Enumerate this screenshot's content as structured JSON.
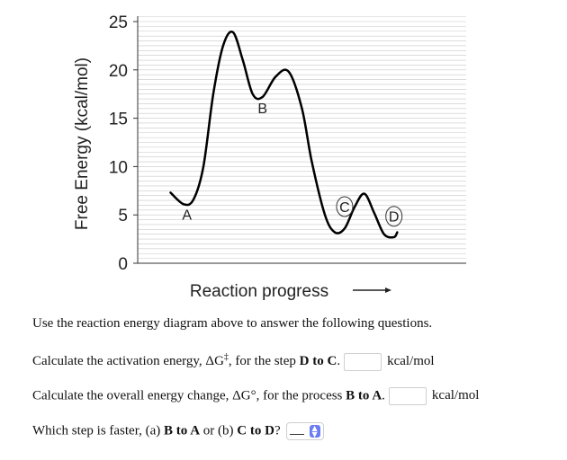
{
  "chart_data": {
    "type": "line",
    "ylabel": "Free Energy (kcal/mol)",
    "xlabel": "Reaction progress",
    "ylim": [
      0,
      25
    ],
    "yticks": [
      "0",
      "5",
      "10",
      "15",
      "20",
      "25"
    ],
    "grid": true,
    "curve": [
      {
        "x": 0.1,
        "y": 7.3
      },
      {
        "x": 0.14,
        "y": 6.1
      },
      {
        "x": 0.17,
        "y": 6.6
      },
      {
        "x": 0.2,
        "y": 10.0
      },
      {
        "x": 0.23,
        "y": 17.5
      },
      {
        "x": 0.26,
        "y": 22.5
      },
      {
        "x": 0.29,
        "y": 23.9
      },
      {
        "x": 0.32,
        "y": 21.0
      },
      {
        "x": 0.35,
        "y": 17.5
      },
      {
        "x": 0.38,
        "y": 17.2
      },
      {
        "x": 0.42,
        "y": 19.3
      },
      {
        "x": 0.46,
        "y": 19.8
      },
      {
        "x": 0.5,
        "y": 16.0
      },
      {
        "x": 0.53,
        "y": 10.5
      },
      {
        "x": 0.57,
        "y": 5.0
      },
      {
        "x": 0.6,
        "y": 3.2
      },
      {
        "x": 0.63,
        "y": 3.6
      },
      {
        "x": 0.66,
        "y": 5.8
      },
      {
        "x": 0.69,
        "y": 7.2
      },
      {
        "x": 0.72,
        "y": 5.2
      },
      {
        "x": 0.75,
        "y": 3.0
      },
      {
        "x": 0.78,
        "y": 2.7
      },
      {
        "x": 0.79,
        "y": 3.2
      }
    ],
    "point_labels": [
      {
        "text": "A",
        "x": 0.15,
        "y": 4.5,
        "circled": false
      },
      {
        "text": "B",
        "x": 0.38,
        "y": 15.5,
        "circled": false
      },
      {
        "text": "C",
        "x": 0.63,
        "y": 5.3,
        "circled": true
      },
      {
        "text": "D",
        "x": 0.78,
        "y": 4.3,
        "circled": true
      }
    ]
  },
  "questions": {
    "intro": "Use the reaction energy diagram above to answer the following questions.",
    "q1_before": "Calculate the activation energy, ΔG",
    "q1_sup": "‡",
    "q1_mid": ", for the step",
    "q1_bold": "D to C",
    "q1_after": ".",
    "q1_unit": "kcal/mol",
    "q2_before": "Calculate the overall energy change, ΔG°, for the process",
    "q2_bold": "B to A",
    "q2_after": ".",
    "q2_unit": "kcal/mol",
    "q3_before": "Which step is faster, (a)",
    "q3_bold_a": "B to A",
    "q3_mid": "or (b)",
    "q3_bold_b": "C to D",
    "q3_after": "?"
  }
}
